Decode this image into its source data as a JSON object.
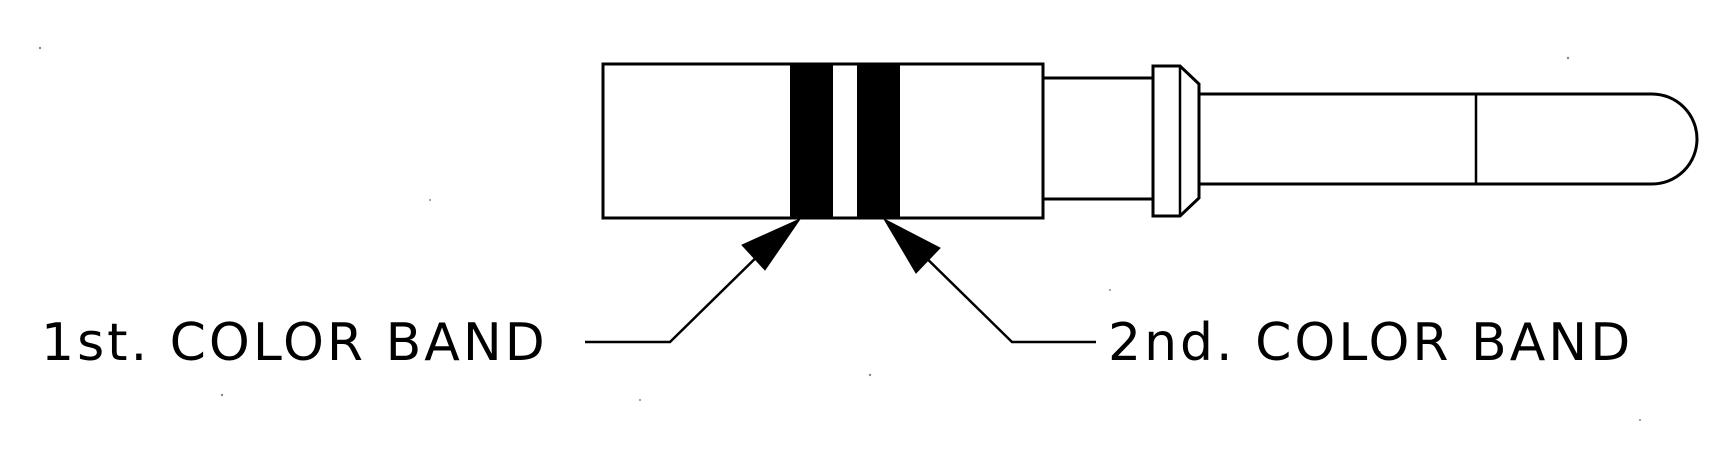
{
  "diagram": {
    "labels": {
      "first_band": "1st. COLOR BAND",
      "second_band": "2nd. COLOR BAND"
    },
    "colors": {
      "line": "#000000",
      "band": "#000000",
      "background": "#ffffff"
    }
  }
}
